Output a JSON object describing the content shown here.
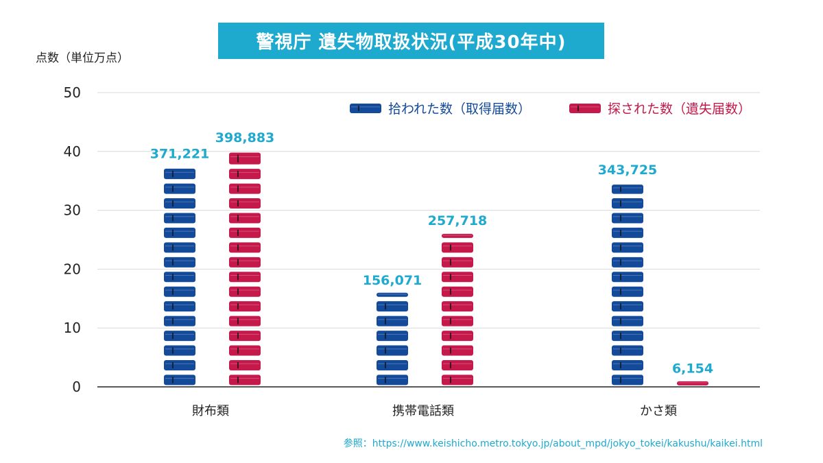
{
  "title": "警視庁 遺失物取扱状況(平成30年中)",
  "source": "参照：https://www.keishicho.metro.tokyo.jp/about_mpd/jokyo_tokei/kakushu/kaikei.html",
  "colors": {
    "found": "#134a9a",
    "sought": "#c4194a",
    "accent": "#1ea9cf"
  },
  "chart_data": {
    "type": "bar",
    "ylabel": "点数（単位万点）",
    "ylim": [
      0,
      50
    ],
    "yticks": [
      "0",
      "10",
      "20",
      "30",
      "40",
      "50"
    ],
    "grid": true,
    "legend_position": "top-right",
    "categories": [
      "財布類",
      "携帯電話類",
      "かさ類"
    ],
    "series": [
      {
        "name": "拾われた数（取得届数）",
        "values": [
          37.1221,
          15.6071,
          34.3725
        ],
        "labels": [
          "371,221",
          "156,071",
          "343,725"
        ]
      },
      {
        "name": "探された数（遺失届数）",
        "values": [
          39.8883,
          25.7718,
          0.6154
        ],
        "labels": [
          "398,883",
          "257,718",
          "6,154"
        ]
      }
    ]
  }
}
